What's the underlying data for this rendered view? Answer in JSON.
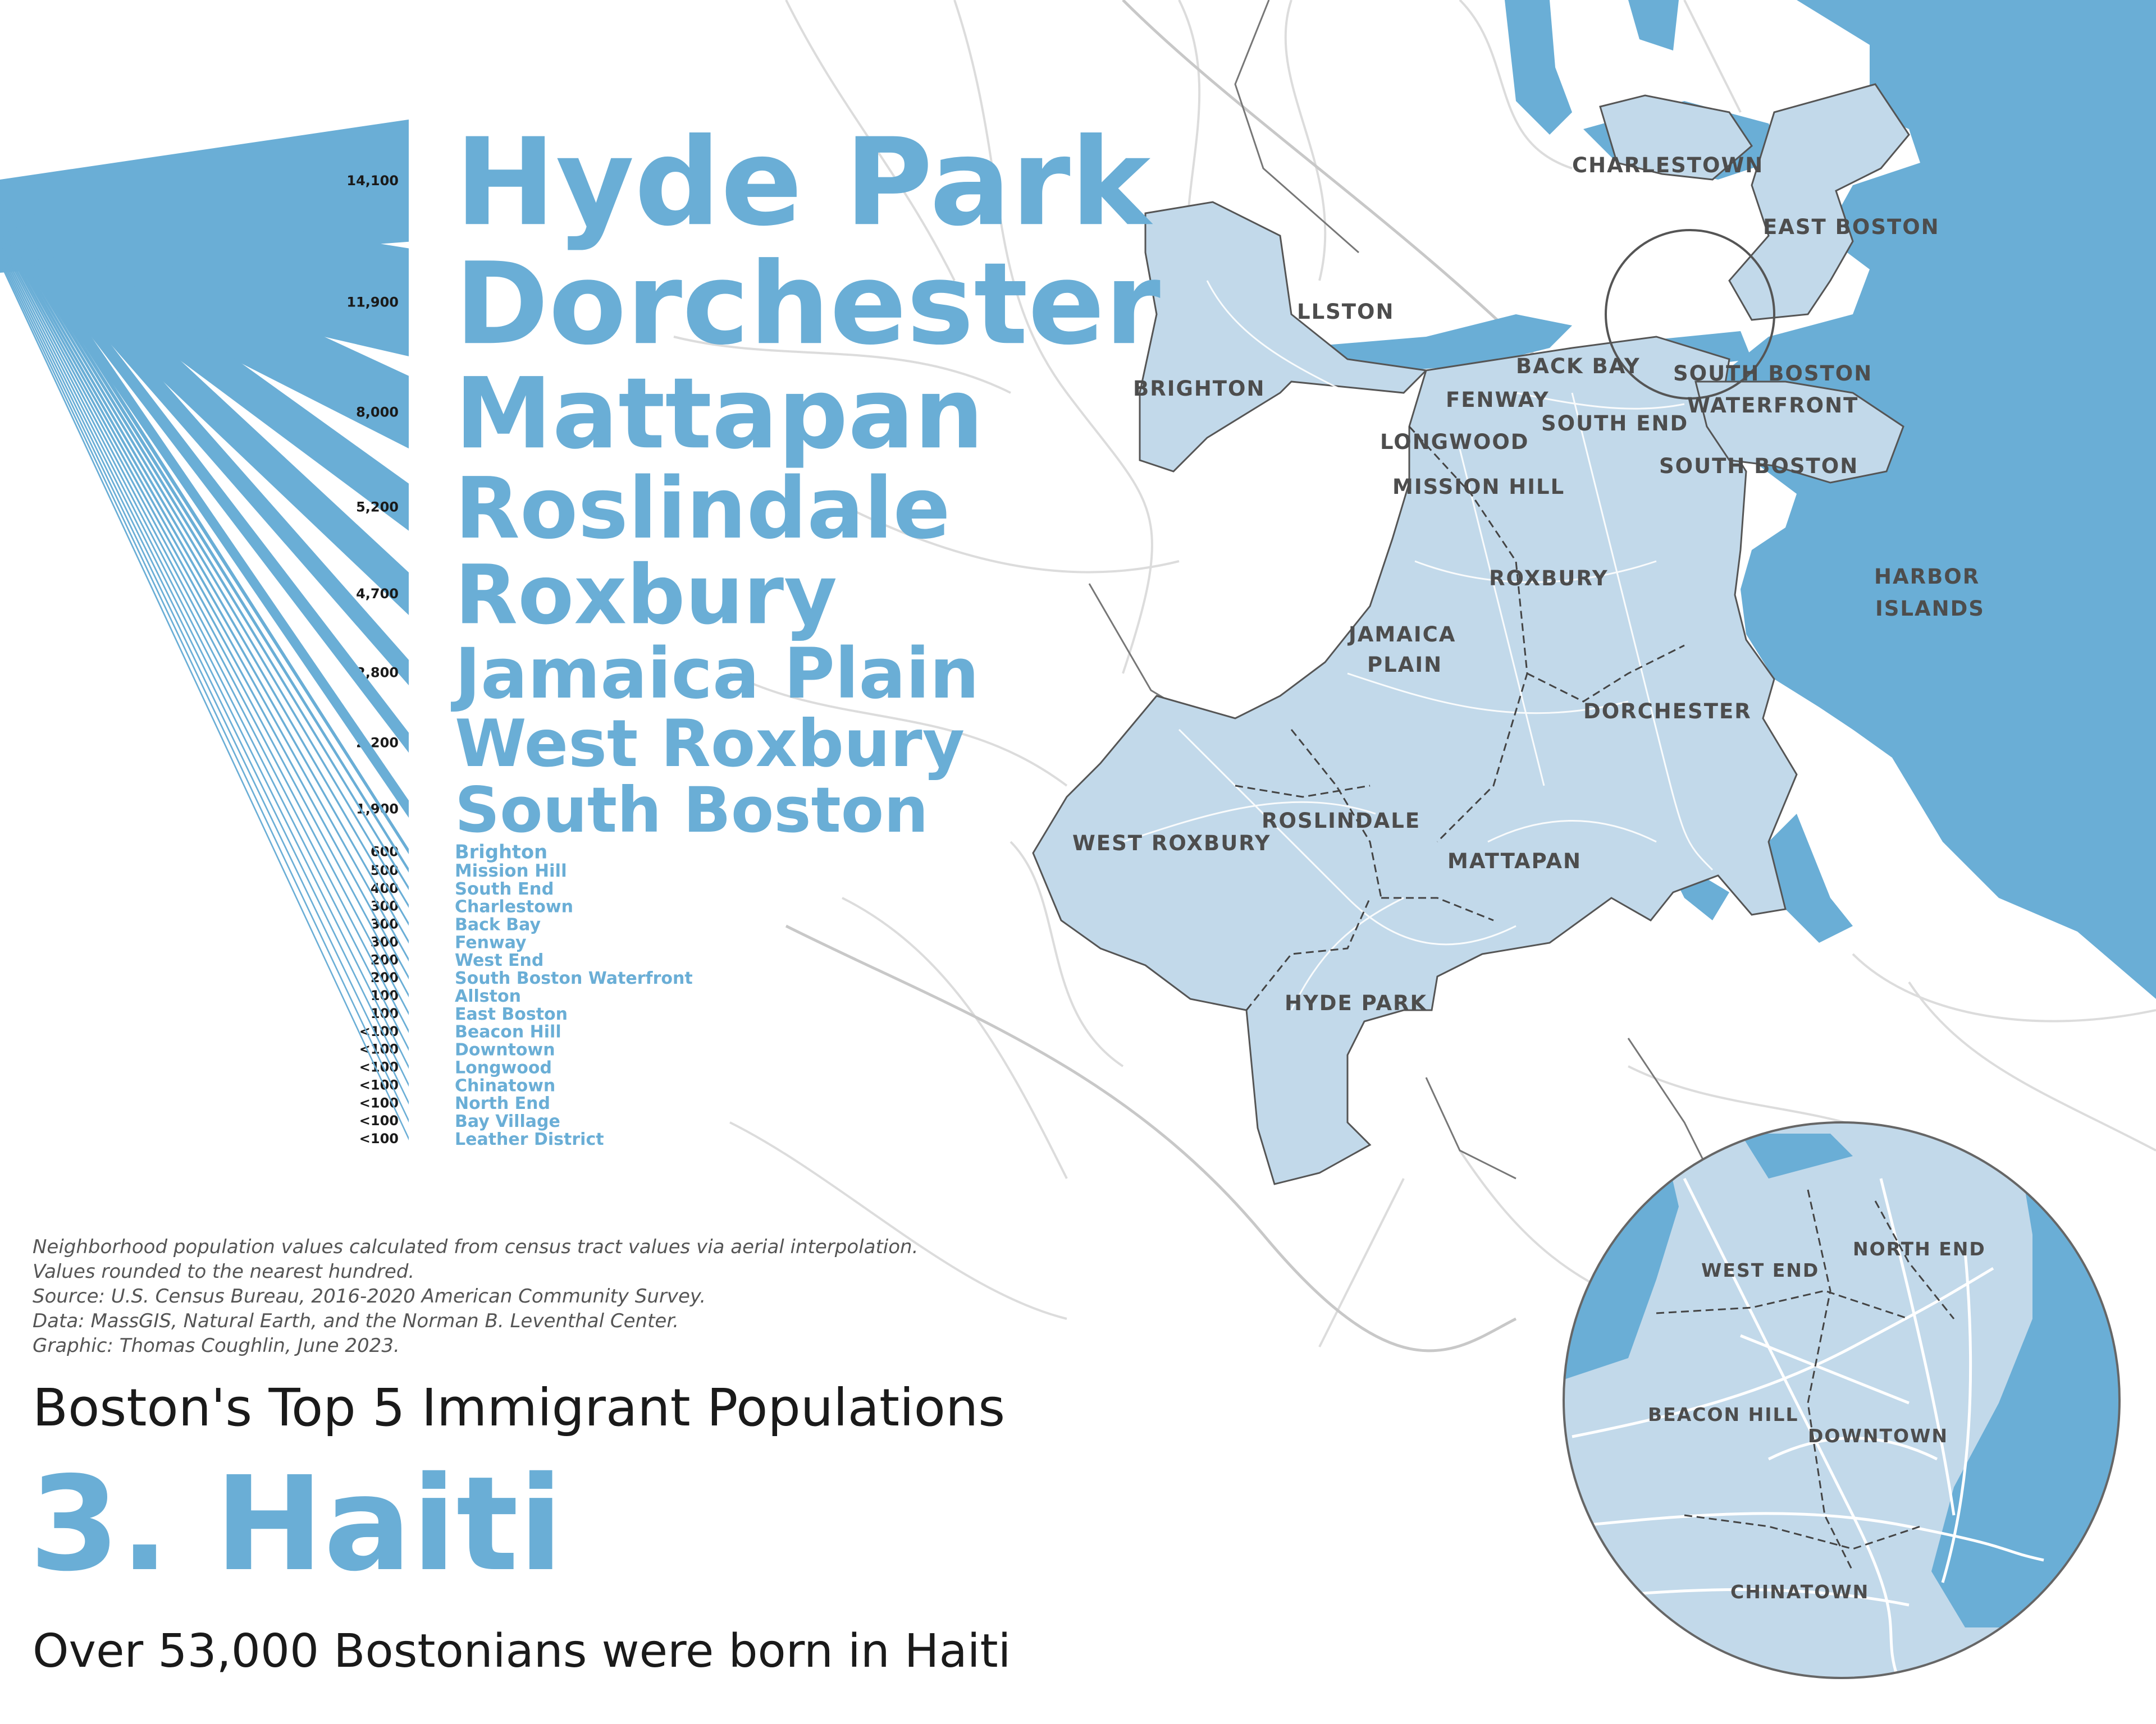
{
  "colors": {
    "accent": "#6aaed6",
    "land": "#c2d9ea",
    "water": "#6aaed6",
    "roads": "#dedede",
    "border": "#444444"
  },
  "chart_data": {
    "type": "bar",
    "categories": [
      "Hyde Park",
      "Dorchester",
      "Mattapan",
      "Roslindale",
      "Roxbury",
      "Jamaica Plain",
      "West Roxbury",
      "South Boston",
      "Brighton",
      "Mission Hill",
      "South End",
      "Charlestown",
      "Back Bay",
      "Fenway",
      "West End",
      "South Boston Waterfront",
      "Allston",
      "East Boston",
      "Beacon Hill",
      "Downtown",
      "Longwood",
      "Chinatown",
      "North End",
      "Bay Village",
      "Leather District"
    ],
    "values": [
      14100,
      11900,
      8000,
      5200,
      4700,
      2800,
      2200,
      1900,
      600,
      500,
      400,
      300,
      300,
      300,
      200,
      200,
      100,
      100,
      50,
      50,
      50,
      50,
      50,
      50,
      50
    ],
    "value_labels": [
      "14,100",
      "11,900",
      "8,000",
      "5,200",
      "4,700",
      "2,800",
      "2,200",
      "1,900",
      "600",
      "500",
      "400",
      "300",
      "300",
      "300",
      "200",
      "200",
      "100",
      "100",
      "<100",
      "<100",
      "<100",
      "<100",
      "<100",
      "<100",
      "<100"
    ]
  },
  "map": {
    "neighborhoods": [
      "CHARLESTOWN",
      "EAST BOSTON",
      "LLSTON",
      "BRIGHTON",
      "BACK BAY",
      "SOUTH BOSTON",
      "WATERFRONT",
      "FENWAY",
      "SOUTH END",
      "LONGWOOD",
      "MISSION HILL",
      "SOUTH BOSTON",
      "HARBOR",
      "ISLANDS",
      "ROXBURY",
      "JAMAICA",
      "PLAIN",
      "DORCHESTER",
      "WEST ROXBURY",
      "ROSLINDALE",
      "MATTAPAN",
      "HYDE PARK"
    ],
    "inset": [
      "WEST END",
      "NORTH END",
      "BEACON HILL",
      "DOWNTOWN",
      "CHINATOWN"
    ]
  },
  "notes": [
    "Neighborhood population values calculated from census tract values via aerial interpolation.",
    "Values rounded to the nearest hundred.",
    "Source: U.S. Census Bureau, 2016-2020 American Community Survey.",
    "Data: MassGIS, Natural Earth, and the Norman B. Leventhal Center.",
    "Graphic: Thomas Coughlin, June 2023."
  ],
  "subtitle": "Boston's Top 5 Immigrant Populations",
  "title": "3. Haiti",
  "tagline": "Over 53,000 Bostonians were born in Haiti"
}
